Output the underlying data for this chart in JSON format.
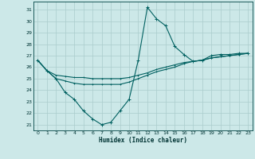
{
  "xlabel": "Humidex (Indice chaleur)",
  "bg_color": "#cce8e8",
  "grid_color": "#aacccc",
  "line_color": "#006060",
  "xlim": [
    -0.5,
    23.5
  ],
  "ylim": [
    20.5,
    31.7
  ],
  "xticks": [
    0,
    1,
    2,
    3,
    4,
    5,
    6,
    7,
    8,
    9,
    10,
    11,
    12,
    13,
    14,
    15,
    16,
    17,
    18,
    19,
    20,
    21,
    22,
    23
  ],
  "yticks": [
    21,
    22,
    23,
    24,
    25,
    26,
    27,
    28,
    29,
    30,
    31
  ],
  "series1": [
    26.6,
    25.7,
    25.0,
    23.8,
    23.2,
    22.2,
    21.5,
    21.0,
    21.2,
    22.2,
    23.2,
    26.6,
    31.2,
    30.2,
    29.6,
    27.8,
    27.1,
    26.5,
    26.6,
    27.0,
    27.1,
    27.1,
    27.2,
    27.2
  ],
  "series2": [
    26.6,
    25.7,
    25.3,
    25.2,
    25.1,
    25.1,
    25.0,
    25.0,
    25.0,
    25.0,
    25.1,
    25.3,
    25.5,
    25.8,
    26.0,
    26.2,
    26.4,
    26.5,
    26.6,
    26.8,
    26.9,
    27.0,
    27.1,
    27.2
  ],
  "series3": [
    26.6,
    25.7,
    25.0,
    24.8,
    24.6,
    24.5,
    24.5,
    24.5,
    24.5,
    24.5,
    24.7,
    25.0,
    25.3,
    25.6,
    25.8,
    26.0,
    26.3,
    26.5,
    26.6,
    26.8,
    26.9,
    27.0,
    27.1,
    27.2
  ]
}
